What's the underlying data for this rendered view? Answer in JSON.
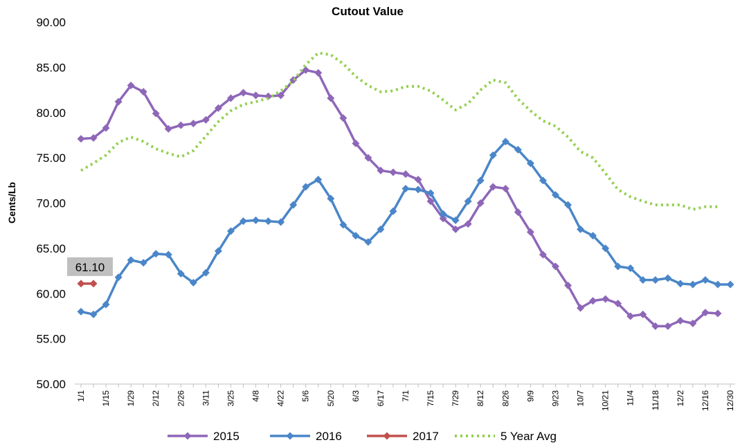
{
  "chart_data": {
    "type": "line",
    "title": "Cutout Value",
    "y_label": "Cents/Lb",
    "categories": [
      "1/1",
      null,
      "1/15",
      null,
      "1/29",
      null,
      "2/12",
      null,
      "2/26",
      null,
      "3/11",
      null,
      "3/25",
      null,
      "4/8",
      null,
      "4/22",
      null,
      "5/6",
      null,
      "5/20",
      null,
      "6/3",
      null,
      "6/17",
      null,
      "7/1",
      null,
      "7/15",
      null,
      "7/29",
      null,
      "8/12",
      null,
      "8/26",
      null,
      "9/9",
      null,
      "9/23",
      null,
      "10/7",
      null,
      "10/21",
      null,
      "11/4",
      null,
      "11/18",
      null,
      "12/2",
      null,
      "12/16",
      null,
      "12/30"
    ],
    "ylim": [
      50,
      90
    ],
    "yticks": [
      {
        "value": 50,
        "label": "50.00"
      },
      {
        "value": 55,
        "label": "55.00"
      },
      {
        "value": 60,
        "label": "60.00"
      },
      {
        "value": 65,
        "label": "65.00"
      },
      {
        "value": 70,
        "label": "70.00"
      },
      {
        "value": 75,
        "label": "75.00"
      },
      {
        "value": 80,
        "label": "80.00"
      },
      {
        "value": 85,
        "label": "85.00"
      },
      {
        "value": 90,
        "label": "90.00"
      }
    ],
    "grid": false,
    "legend": "bottom",
    "series": [
      {
        "name": "2015",
        "color": "#8e67b8",
        "marker": "diamond",
        "dash": "solid",
        "values": [
          77.1,
          77.2,
          78.3,
          81.2,
          83.0,
          82.3,
          79.9,
          78.2,
          78.6,
          78.8,
          79.2,
          80.5,
          81.6,
          82.2,
          81.9,
          81.8,
          81.9,
          83.6,
          84.7,
          84.4,
          81.6,
          79.4,
          76.6,
          75.0,
          73.6,
          73.4,
          73.2,
          72.6,
          70.2,
          68.3,
          67.1,
          67.7,
          70.0,
          71.8,
          71.6,
          69.0,
          66.8,
          64.3,
          63.0,
          60.9,
          58.4,
          59.2,
          59.4,
          58.9,
          57.5,
          57.7,
          56.4,
          56.4,
          57.0,
          56.7,
          57.9,
          57.8,
          null
        ]
      },
      {
        "name": "2016",
        "color": "#4a86c8",
        "marker": "diamond",
        "dash": "solid",
        "values": [
          58.0,
          57.7,
          58.8,
          61.8,
          63.7,
          63.4,
          64.4,
          64.3,
          62.2,
          61.2,
          62.3,
          64.7,
          66.9,
          68.0,
          68.1,
          68.0,
          67.9,
          69.8,
          71.8,
          72.6,
          70.5,
          67.6,
          66.4,
          65.7,
          67.1,
          69.1,
          71.6,
          71.5,
          71.1,
          68.8,
          68.1,
          70.2,
          72.5,
          75.3,
          76.8,
          75.9,
          74.4,
          72.5,
          70.9,
          69.8,
          67.1,
          66.4,
          65.0,
          63.0,
          62.8,
          61.5,
          61.5,
          61.7,
          61.1,
          61.0,
          61.5,
          61.0,
          61.0
        ]
      },
      {
        "name": "2017",
        "color": "#c0504d",
        "marker": "diamond",
        "dash": "solid",
        "values": [
          61.1,
          61.1,
          null,
          null,
          null,
          null,
          null,
          null,
          null,
          null,
          null,
          null,
          null,
          null,
          null,
          null,
          null,
          null,
          null,
          null,
          null,
          null,
          null,
          null,
          null,
          null,
          null,
          null,
          null,
          null,
          null,
          null,
          null,
          null,
          null,
          null,
          null,
          null,
          null,
          null,
          null,
          null,
          null,
          null,
          null,
          null,
          null,
          null,
          null,
          null,
          null,
          null,
          null
        ],
        "value_labels": [
          "61.10",
          null,
          null,
          null,
          null,
          null,
          null,
          null,
          null,
          null,
          null,
          null,
          null,
          null,
          null,
          null,
          null,
          null,
          null,
          null,
          null,
          null,
          null,
          null,
          null,
          null,
          null,
          null,
          null,
          null,
          null,
          null,
          null,
          null,
          null,
          null,
          null,
          null,
          null,
          null,
          null,
          null,
          null,
          null,
          null,
          null,
          null,
          null,
          null,
          null,
          null,
          null,
          null
        ]
      },
      {
        "name": "5 Year Avg",
        "color": "#92d050",
        "marker": "none",
        "dash": "dotted",
        "values": [
          73.6,
          74.4,
          75.3,
          76.7,
          77.3,
          76.8,
          76.0,
          75.5,
          75.1,
          75.8,
          77.4,
          79.0,
          80.2,
          80.9,
          81.2,
          81.6,
          82.4,
          83.5,
          85.3,
          86.6,
          86.4,
          85.4,
          84.0,
          83.0,
          82.3,
          82.4,
          82.9,
          82.9,
          82.4,
          81.4,
          80.3,
          81.0,
          82.5,
          83.6,
          83.3,
          81.5,
          80.2,
          79.1,
          78.5,
          77.3,
          75.7,
          75.0,
          73.3,
          71.5,
          70.7,
          70.2,
          69.8,
          69.8,
          69.8,
          69.3,
          69.6,
          69.6,
          null
        ]
      }
    ]
  }
}
